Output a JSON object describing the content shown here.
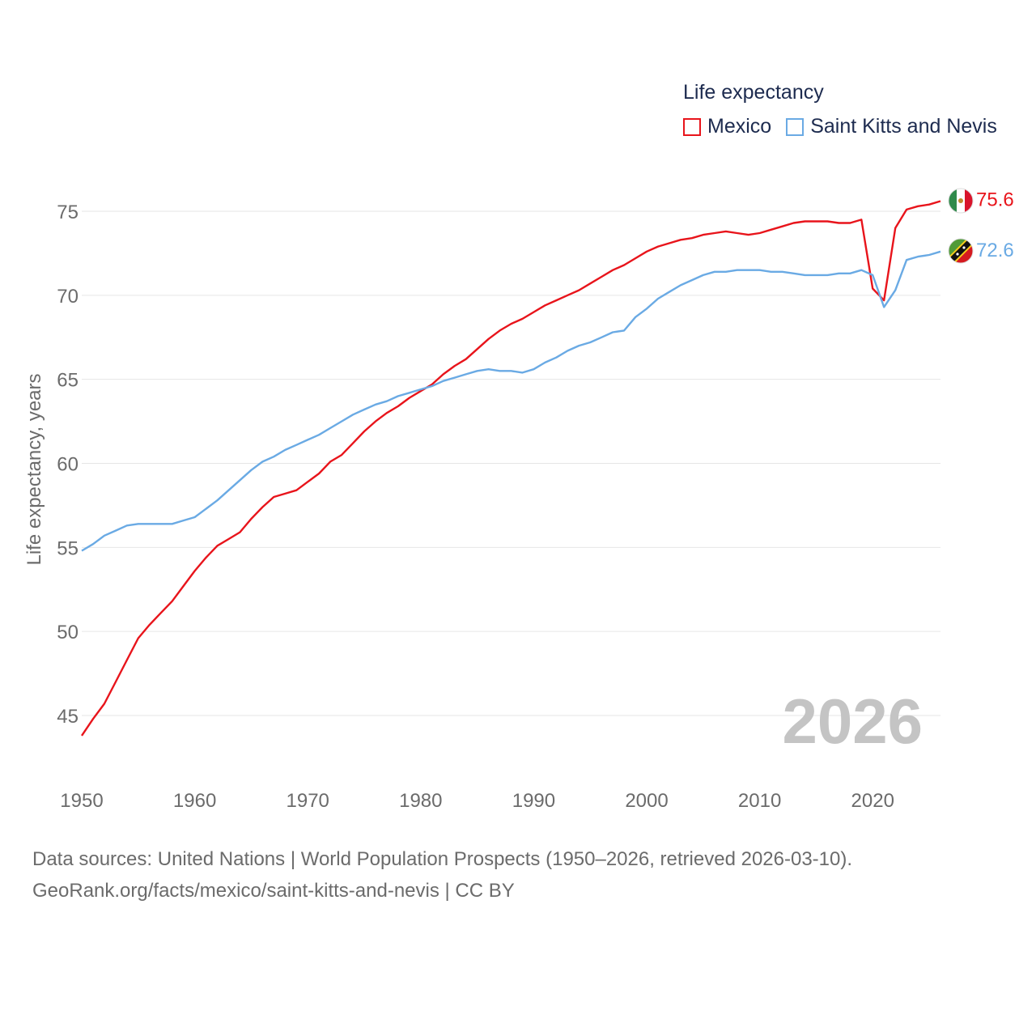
{
  "legend": {
    "title": "Life expectancy"
  },
  "footer": {
    "sources": "Data sources: United Nations | World Population Prospects (1950–2026, retrieved 2026-03-10).",
    "link": "GeoRank.org/facts/mexico/saint-kitts-and-nevis | CC BY"
  },
  "colors": {
    "mexico": "#e8141b",
    "skn": "#6aaae4",
    "grid": "#e6e6e6",
    "axis_text": "#6b6b6b",
    "year": "#c4c4c4"
  },
  "chart_data": {
    "type": "line",
    "title": "Life expectancy",
    "ylabel": "Life expectancy, years",
    "xlabel": "",
    "year_label": "2026",
    "xlim": [
      1950,
      2026
    ],
    "ylim": [
      42,
      77
    ],
    "x_ticks": [
      1950,
      1960,
      1970,
      1980,
      1990,
      2000,
      2010,
      2020
    ],
    "y_ticks": [
      45,
      50,
      55,
      60,
      65,
      70,
      75
    ],
    "x": [
      1950,
      1951,
      1952,
      1953,
      1954,
      1955,
      1956,
      1957,
      1958,
      1959,
      1960,
      1961,
      1962,
      1963,
      1964,
      1965,
      1966,
      1967,
      1968,
      1969,
      1970,
      1971,
      1972,
      1973,
      1974,
      1975,
      1976,
      1977,
      1978,
      1979,
      1980,
      1981,
      1982,
      1983,
      1984,
      1985,
      1986,
      1987,
      1988,
      1989,
      1990,
      1991,
      1992,
      1993,
      1994,
      1995,
      1996,
      1997,
      1998,
      1999,
      2000,
      2001,
      2002,
      2003,
      2004,
      2005,
      2006,
      2007,
      2008,
      2009,
      2010,
      2011,
      2012,
      2013,
      2014,
      2015,
      2016,
      2017,
      2018,
      2019,
      2020,
      2021,
      2022,
      2023,
      2024,
      2025,
      2026
    ],
    "series": [
      {
        "name": "Mexico",
        "color": "#e8141b",
        "end_label": "75.6",
        "values": [
          43.8,
          44.8,
          45.7,
          47.0,
          48.3,
          49.6,
          50.4,
          51.1,
          51.8,
          52.7,
          53.6,
          54.4,
          55.1,
          55.5,
          55.9,
          56.7,
          57.4,
          58.0,
          58.2,
          58.4,
          58.9,
          59.4,
          60.1,
          60.5,
          61.2,
          61.9,
          62.5,
          63.0,
          63.4,
          63.9,
          64.3,
          64.7,
          65.3,
          65.8,
          66.2,
          66.8,
          67.4,
          67.9,
          68.3,
          68.6,
          69.0,
          69.4,
          69.7,
          70.0,
          70.3,
          70.7,
          71.1,
          71.5,
          71.8,
          72.2,
          72.6,
          72.9,
          73.1,
          73.3,
          73.4,
          73.6,
          73.7,
          73.8,
          73.7,
          73.6,
          73.7,
          73.9,
          74.1,
          74.3,
          74.4,
          74.4,
          74.4,
          74.3,
          74.3,
          74.5,
          70.4,
          69.7,
          74.0,
          75.1,
          75.3,
          75.4,
          75.6
        ]
      },
      {
        "name": "Saint Kitts and Nevis",
        "color": "#6aaae4",
        "end_label": "72.6",
        "values": [
          54.8,
          55.2,
          55.7,
          56.0,
          56.3,
          56.4,
          56.4,
          56.4,
          56.4,
          56.6,
          56.8,
          57.3,
          57.8,
          58.4,
          59.0,
          59.6,
          60.1,
          60.4,
          60.8,
          61.1,
          61.4,
          61.7,
          62.1,
          62.5,
          62.9,
          63.2,
          63.5,
          63.7,
          64.0,
          64.2,
          64.4,
          64.6,
          64.9,
          65.1,
          65.3,
          65.5,
          65.6,
          65.5,
          65.5,
          65.4,
          65.6,
          66.0,
          66.3,
          66.7,
          67.0,
          67.2,
          67.5,
          67.8,
          67.9,
          68.7,
          69.2,
          69.8,
          70.2,
          70.6,
          70.9,
          71.2,
          71.4,
          71.4,
          71.5,
          71.5,
          71.5,
          71.4,
          71.4,
          71.3,
          71.2,
          71.2,
          71.2,
          71.3,
          71.3,
          71.5,
          71.2,
          69.3,
          70.3,
          72.1,
          72.3,
          72.4,
          72.6
        ]
      }
    ]
  }
}
